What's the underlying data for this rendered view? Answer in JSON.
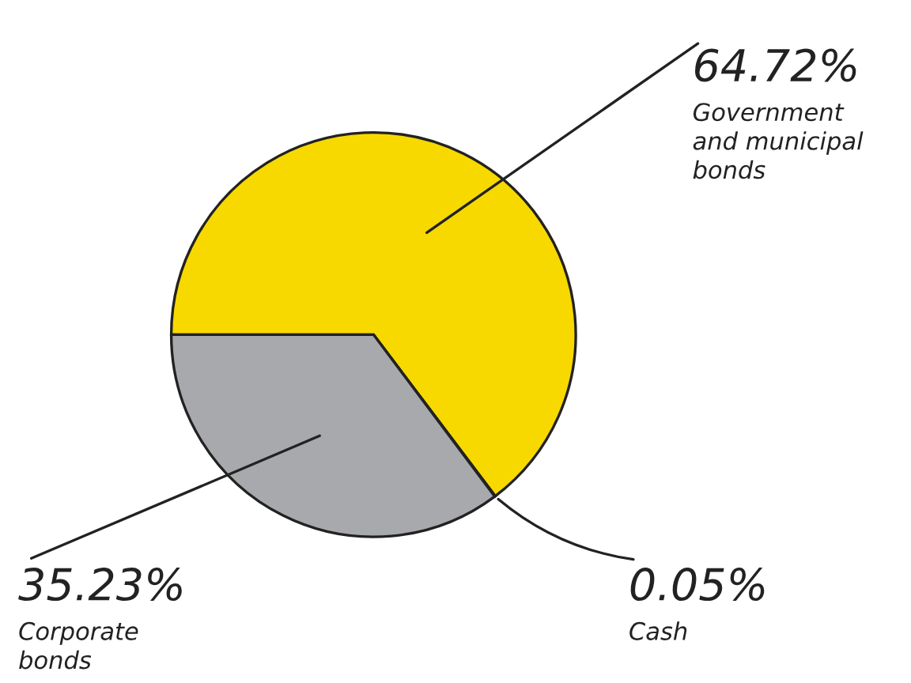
{
  "chart_data": {
    "type": "pie",
    "categories": [
      "Government\nand municipal\nbonds",
      "Cash",
      "Corporate\nbonds"
    ],
    "values": [
      64.72,
      0.05,
      35.23
    ],
    "value_labels": [
      "64.72%",
      "0.05%",
      "35.23%"
    ],
    "colors": [
      "#f7d900",
      "#ffffff",
      "#a8a9ac"
    ]
  }
}
